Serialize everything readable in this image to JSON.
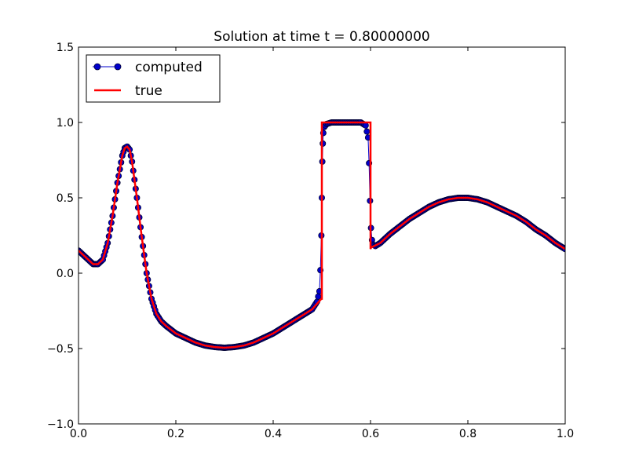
{
  "chart_data": {
    "type": "line",
    "title": "Solution at time t =     0.80000000",
    "xlabel": "",
    "ylabel": "",
    "xlim": [
      0.0,
      1.0
    ],
    "ylim": [
      -1.0,
      1.5
    ],
    "xticks": [
      0.0,
      0.2,
      0.4,
      0.6,
      0.8,
      1.0
    ],
    "xtick_labels": [
      "0.0",
      "0.2",
      "0.4",
      "0.6",
      "0.8",
      "1.0"
    ],
    "yticks": [
      -1.0,
      -0.5,
      0.0,
      0.5,
      1.0,
      1.5
    ],
    "ytick_labels": [
      "−1.0",
      "−0.5",
      "0.0",
      "0.5",
      "1.0",
      "1.5"
    ],
    "grid": false,
    "legend_position": "top-left",
    "series": [
      {
        "name": "computed",
        "style": "line-with-circle-markers",
        "color": "#0000cc",
        "marker_edge_color": "#000033",
        "x": [
          0.0,
          0.01,
          0.02,
          0.03,
          0.04,
          0.05,
          0.06,
          0.07,
          0.08,
          0.09,
          0.095,
          0.1,
          0.105,
          0.11,
          0.12,
          0.13,
          0.14,
          0.15,
          0.16,
          0.17,
          0.18,
          0.2,
          0.22,
          0.24,
          0.26,
          0.28,
          0.3,
          0.32,
          0.34,
          0.36,
          0.38,
          0.4,
          0.42,
          0.44,
          0.46,
          0.48,
          0.49,
          0.495,
          0.497,
          0.499,
          0.5,
          0.501,
          0.502,
          0.503,
          0.505,
          0.51,
          0.52,
          0.54,
          0.56,
          0.58,
          0.59,
          0.595,
          0.597,
          0.599,
          0.601,
          0.603,
          0.605,
          0.61,
          0.62,
          0.64,
          0.66,
          0.68,
          0.7,
          0.72,
          0.74,
          0.76,
          0.78,
          0.8,
          0.82,
          0.84,
          0.86,
          0.88,
          0.9,
          0.92,
          0.94,
          0.96,
          0.98,
          1.0
        ],
        "y": [
          0.15,
          0.12,
          0.09,
          0.06,
          0.06,
          0.09,
          0.2,
          0.38,
          0.6,
          0.78,
          0.83,
          0.84,
          0.82,
          0.74,
          0.5,
          0.24,
          0.0,
          -0.17,
          -0.27,
          -0.32,
          -0.35,
          -0.4,
          -0.43,
          -0.46,
          -0.48,
          -0.49,
          -0.495,
          -0.49,
          -0.48,
          -0.46,
          -0.43,
          -0.4,
          -0.36,
          -0.32,
          -0.28,
          -0.24,
          -0.19,
          -0.12,
          0.02,
          0.25,
          0.5,
          0.74,
          0.86,
          0.93,
          0.97,
          0.99,
          1.0,
          1.0,
          1.0,
          1.0,
          0.98,
          0.9,
          0.73,
          0.48,
          0.3,
          0.22,
          0.19,
          0.18,
          0.2,
          0.26,
          0.31,
          0.36,
          0.4,
          0.44,
          0.47,
          0.49,
          0.5,
          0.5,
          0.49,
          0.47,
          0.44,
          0.41,
          0.38,
          0.34,
          0.29,
          0.25,
          0.2,
          0.16
        ]
      },
      {
        "name": "true",
        "style": "line",
        "color": "#ff0000",
        "x": [
          0.0,
          0.01,
          0.02,
          0.03,
          0.04,
          0.05,
          0.06,
          0.07,
          0.08,
          0.09,
          0.095,
          0.1,
          0.105,
          0.11,
          0.12,
          0.13,
          0.14,
          0.15,
          0.16,
          0.17,
          0.18,
          0.2,
          0.22,
          0.24,
          0.26,
          0.28,
          0.3,
          0.32,
          0.34,
          0.36,
          0.38,
          0.4,
          0.42,
          0.44,
          0.46,
          0.48,
          0.499,
          0.5,
          0.5,
          0.6,
          0.6,
          0.601,
          0.62,
          0.64,
          0.66,
          0.68,
          0.7,
          0.72,
          0.74,
          0.76,
          0.78,
          0.8,
          0.82,
          0.84,
          0.86,
          0.88,
          0.9,
          0.92,
          0.94,
          0.96,
          0.98,
          1.0
        ],
        "y": [
          0.15,
          0.12,
          0.09,
          0.06,
          0.06,
          0.09,
          0.2,
          0.38,
          0.6,
          0.78,
          0.83,
          0.84,
          0.82,
          0.74,
          0.5,
          0.24,
          0.0,
          -0.17,
          -0.27,
          -0.32,
          -0.35,
          -0.4,
          -0.43,
          -0.46,
          -0.48,
          -0.49,
          -0.495,
          -0.49,
          -0.48,
          -0.46,
          -0.43,
          -0.4,
          -0.36,
          -0.32,
          -0.28,
          -0.24,
          -0.17,
          -0.17,
          1.0,
          1.0,
          0.16,
          0.17,
          0.2,
          0.26,
          0.31,
          0.36,
          0.4,
          0.44,
          0.47,
          0.49,
          0.5,
          0.5,
          0.49,
          0.47,
          0.44,
          0.41,
          0.38,
          0.34,
          0.29,
          0.25,
          0.2,
          0.16
        ]
      }
    ]
  }
}
